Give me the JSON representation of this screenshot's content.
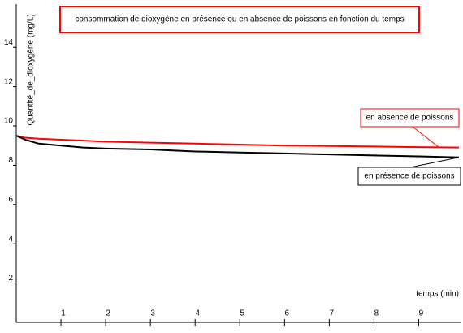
{
  "chart_data": {
    "type": "line",
    "title": "consommation de dioxygène en présence ou en absence de poissons en fonction du temps",
    "x_label": "temps (min)",
    "y_label": "Quantité_de_dioxygène (mg/L)",
    "x": [
      0,
      0.2,
      0.5,
      1,
      1.5,
      2,
      3,
      4,
      5,
      6,
      7,
      8,
      9,
      9.9
    ],
    "series": [
      {
        "name": "en absence de poissons",
        "color": "#ff0000",
        "values": [
          9.5,
          9.4,
          9.35,
          9.3,
          9.25,
          9.2,
          9.15,
          9.1,
          9.05,
          9.0,
          8.98,
          8.95,
          8.92,
          8.9
        ]
      },
      {
        "name": "en présence de poissons",
        "color": "#000000",
        "values": [
          9.5,
          9.3,
          9.1,
          9.0,
          8.9,
          8.85,
          8.8,
          8.7,
          8.65,
          8.6,
          8.55,
          8.5,
          8.45,
          8.4
        ]
      }
    ],
    "xlim": [
      0,
      9.9
    ],
    "xticks": [
      1,
      2,
      3,
      4,
      5,
      6,
      7,
      8,
      9
    ],
    "ylim": [
      0,
      16.2
    ],
    "yticks": [
      2,
      4,
      6,
      8,
      10,
      12,
      14
    ]
  }
}
